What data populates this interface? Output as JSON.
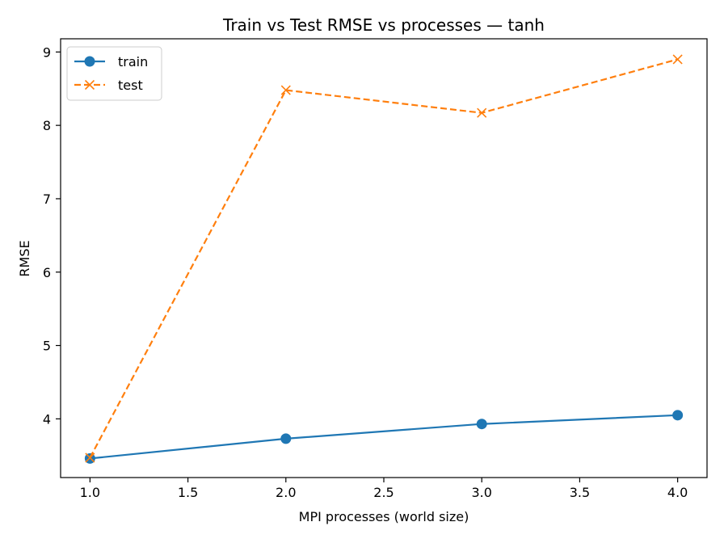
{
  "chart_data": {
    "type": "line",
    "title": "Train vs Test RMSE vs processes — tanh",
    "xlabel": "MPI processes (world size)",
    "ylabel": "RMSE",
    "x": [
      1.0,
      2.0,
      3.0,
      4.0
    ],
    "xlim": [
      0.85,
      4.15
    ],
    "ylim": [
      3.2,
      9.18
    ],
    "xticks": [
      1.0,
      1.5,
      2.0,
      2.5,
      3.0,
      3.5,
      4.0
    ],
    "xtick_labels": [
      "1.0",
      "1.5",
      "2.0",
      "2.5",
      "3.0",
      "3.5",
      "4.0"
    ],
    "yticks": [
      4,
      5,
      6,
      7,
      8,
      9
    ],
    "ytick_labels": [
      "4",
      "5",
      "6",
      "7",
      "8",
      "9"
    ],
    "grid": false,
    "legend_position": "top-left",
    "series": [
      {
        "name": "train",
        "values": [
          3.46,
          3.73,
          3.93,
          4.05
        ],
        "color": "#1f77b4",
        "linestyle": "solid",
        "marker": "circle"
      },
      {
        "name": "test",
        "values": [
          3.47,
          8.48,
          8.17,
          8.9
        ],
        "color": "#ff7f0e",
        "linestyle": "dashed",
        "marker": "x"
      }
    ]
  }
}
